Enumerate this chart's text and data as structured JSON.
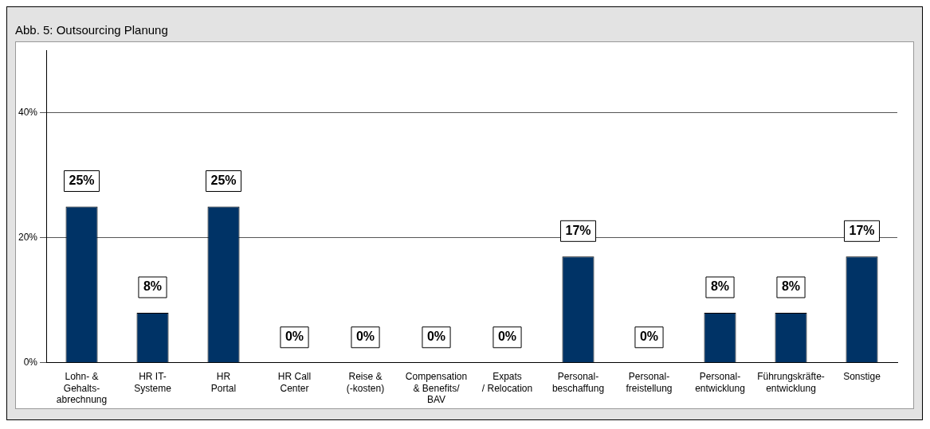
{
  "chart_data": {
    "type": "bar",
    "title": "Abb. 5: Outsourcing Planung",
    "categories": [
      "Lohn- &\nGehalts-\nabrechnung",
      "HR IT-\nSysteme",
      "HR\nPortal",
      "HR Call\nCenter",
      "Reise &\n(-kosten)",
      "Compensation\n& Benefits/\nBAV",
      "Expats\n/ Relocation",
      "Personal-\nbeschaffung",
      "Personal-\nfreistellung",
      "Personal-\nentwicklung",
      "Führungskräfte-\nentwicklung",
      "Sonstige"
    ],
    "values": [
      25,
      8,
      25,
      0,
      0,
      0,
      0,
      17,
      0,
      8,
      8,
      17
    ],
    "value_labels": [
      "25%",
      "8%",
      "25%",
      "0%",
      "0%",
      "0%",
      "0%",
      "17%",
      "0%",
      "8%",
      "8%",
      "17%"
    ],
    "color": "#003366",
    "ylim": [
      0,
      50
    ],
    "yticks": [
      {
        "value": 0,
        "label": "0%"
      },
      {
        "value": 20,
        "label": "20%"
      },
      {
        "value": 40,
        "label": "40%"
      }
    ],
    "grid": "y",
    "legend": false
  }
}
